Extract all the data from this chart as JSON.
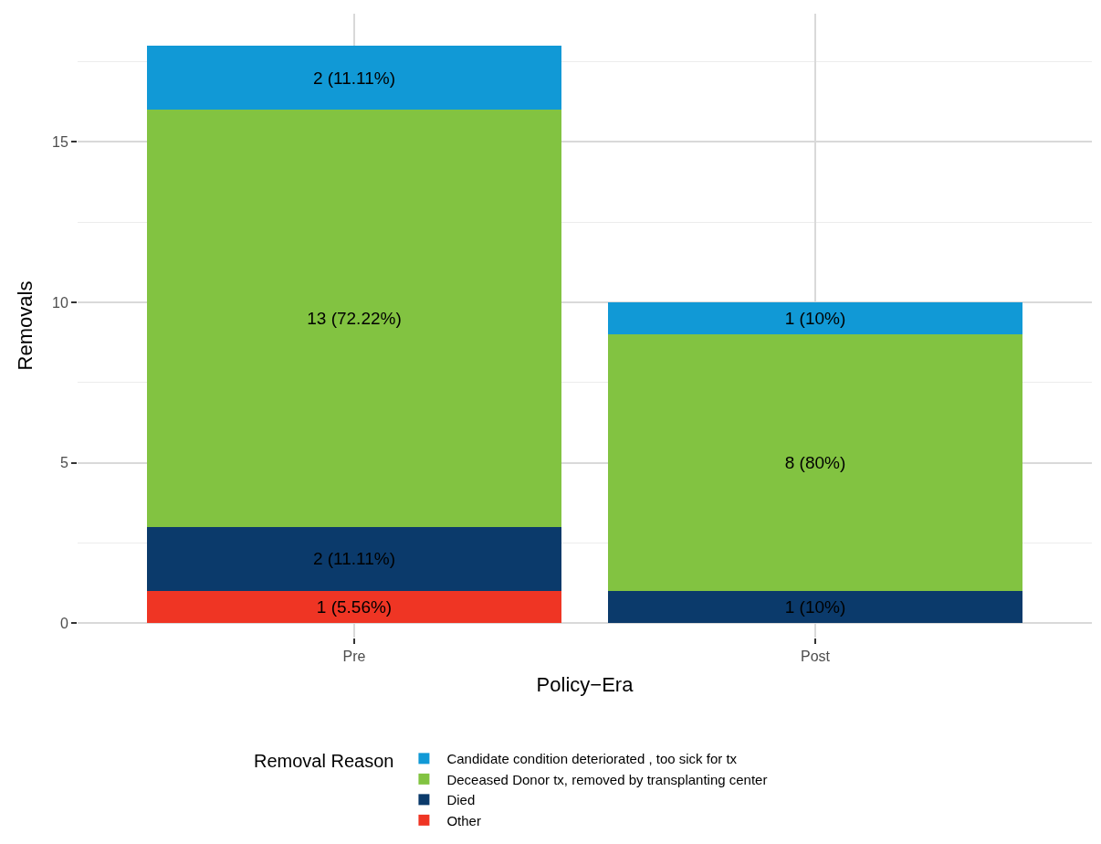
{
  "chart_data": {
    "type": "bar",
    "stacked": true,
    "xlabel": "Policy−Era",
    "ylabel": "Removals",
    "legend_title": "Removal Reason",
    "categories": [
      "Pre",
      "Post"
    ],
    "series": [
      {
        "name": "Other",
        "color": "#ef3524",
        "values": [
          1,
          0
        ],
        "value_labels": [
          "1 (5.56%)",
          null
        ]
      },
      {
        "name": "Died",
        "color": "#0b3a6b",
        "values": [
          2,
          1
        ],
        "value_labels": [
          "2 (11.11%)",
          "1 (10%)"
        ]
      },
      {
        "name": "Deceased Donor tx, removed by transplanting center",
        "color": "#82c341",
        "values": [
          13,
          8
        ],
        "value_labels": [
          "13 (72.22%)",
          "8 (80%)"
        ]
      },
      {
        "name": "Candidate condition deteriorated , too sick for tx",
        "color": "#1199d6",
        "values": [
          2,
          1
        ],
        "value_labels": [
          "2 (11.11%)",
          "1 (10%)"
        ]
      }
    ],
    "ylim": [
      -0.45,
      19
    ],
    "yticks": [
      0,
      5,
      10,
      15
    ],
    "grid": true,
    "legend": "bottom"
  }
}
